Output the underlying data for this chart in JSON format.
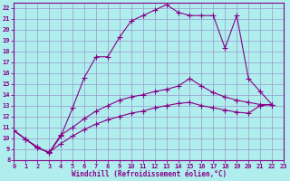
{
  "xlabel": "Windchill (Refroidissement éolien,°C)",
  "xlim": [
    0,
    23
  ],
  "ylim": [
    8,
    22.5
  ],
  "yticks": [
    8,
    9,
    10,
    11,
    12,
    13,
    14,
    15,
    16,
    17,
    18,
    19,
    20,
    21,
    22
  ],
  "xticks": [
    0,
    1,
    2,
    3,
    4,
    5,
    6,
    7,
    8,
    9,
    10,
    11,
    12,
    13,
    14,
    15,
    16,
    17,
    18,
    19,
    20,
    21,
    22,
    23
  ],
  "bg_color": "#b0eeee",
  "grid_color": "#9999cc",
  "line_color": "#880088",
  "s1_x": [
    0,
    1,
    2,
    3,
    4,
    5,
    6,
    7,
    8,
    9,
    10,
    11,
    12,
    13,
    14,
    15,
    16,
    17,
    18,
    19,
    20,
    21,
    22
  ],
  "s1_y": [
    10.7,
    9.9,
    9.2,
    8.6,
    10.2,
    12.8,
    15.6,
    17.5,
    17.5,
    19.3,
    20.8,
    21.3,
    21.8,
    22.3,
    21.6,
    21.3,
    21.3,
    21.3,
    18.3,
    21.3,
    15.5,
    14.3,
    13.1
  ],
  "s2_x": [
    0,
    1,
    2,
    3,
    4,
    5,
    6,
    7,
    8,
    9,
    10,
    11,
    12,
    13,
    14,
    15,
    16,
    17,
    18,
    19,
    20,
    21,
    22
  ],
  "s2_y": [
    10.7,
    9.9,
    9.1,
    8.7,
    10.3,
    11.0,
    11.8,
    12.5,
    13.0,
    13.5,
    13.8,
    14.0,
    14.3,
    14.5,
    14.8,
    15.5,
    14.8,
    14.2,
    13.8,
    13.5,
    13.3,
    13.1,
    13.1
  ],
  "s3_x": [
    0,
    1,
    2,
    3,
    4,
    5,
    6,
    7,
    8,
    9,
    10,
    11,
    12,
    13,
    14,
    15,
    16,
    17,
    18,
    19,
    20,
    21,
    22
  ],
  "s3_y": [
    10.7,
    9.9,
    9.1,
    8.7,
    9.5,
    10.2,
    10.8,
    11.3,
    11.7,
    12.0,
    12.3,
    12.5,
    12.8,
    13.0,
    13.2,
    13.3,
    13.0,
    12.8,
    12.6,
    12.4,
    12.3,
    13.0,
    13.1
  ]
}
